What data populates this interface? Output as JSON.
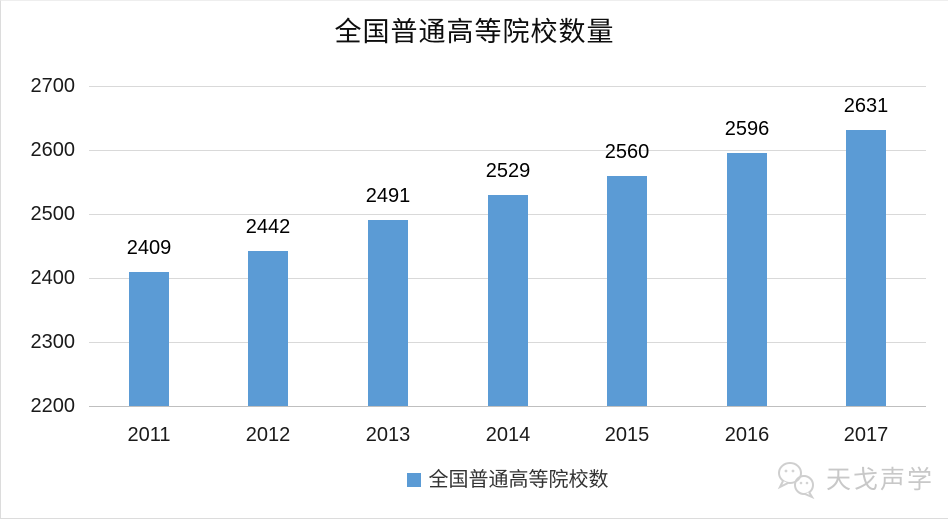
{
  "title": "全国普通高等院校数量",
  "legend": {
    "label": "全国普通高等院校数",
    "swatch_color": "#5B9BD5"
  },
  "watermark": {
    "text": "天戈声学",
    "icon": "chat-bubbles-mascot-icon"
  },
  "colors": {
    "bar": "#5B9BD5",
    "gridline": "#D9D9D9",
    "axis_line": "#BFBFBF",
    "text": "#1A1A1A",
    "watermark": "#C8C8C8",
    "border": "#DCDCDC"
  },
  "chart_data": {
    "type": "bar",
    "title": "全国普通高等院校数量",
    "categories": [
      "2011",
      "2012",
      "2013",
      "2014",
      "2015",
      "2016",
      "2017"
    ],
    "values": [
      2409,
      2442,
      2491,
      2529,
      2560,
      2596,
      2631
    ],
    "series_name": "全国普通高等院校数",
    "xlabel": "",
    "ylabel": "",
    "ylim": [
      2200,
      2700
    ],
    "yticks": [
      2200,
      2300,
      2400,
      2500,
      2600,
      2700
    ],
    "grid": true,
    "data_labels": true,
    "legend_position": "bottom"
  }
}
